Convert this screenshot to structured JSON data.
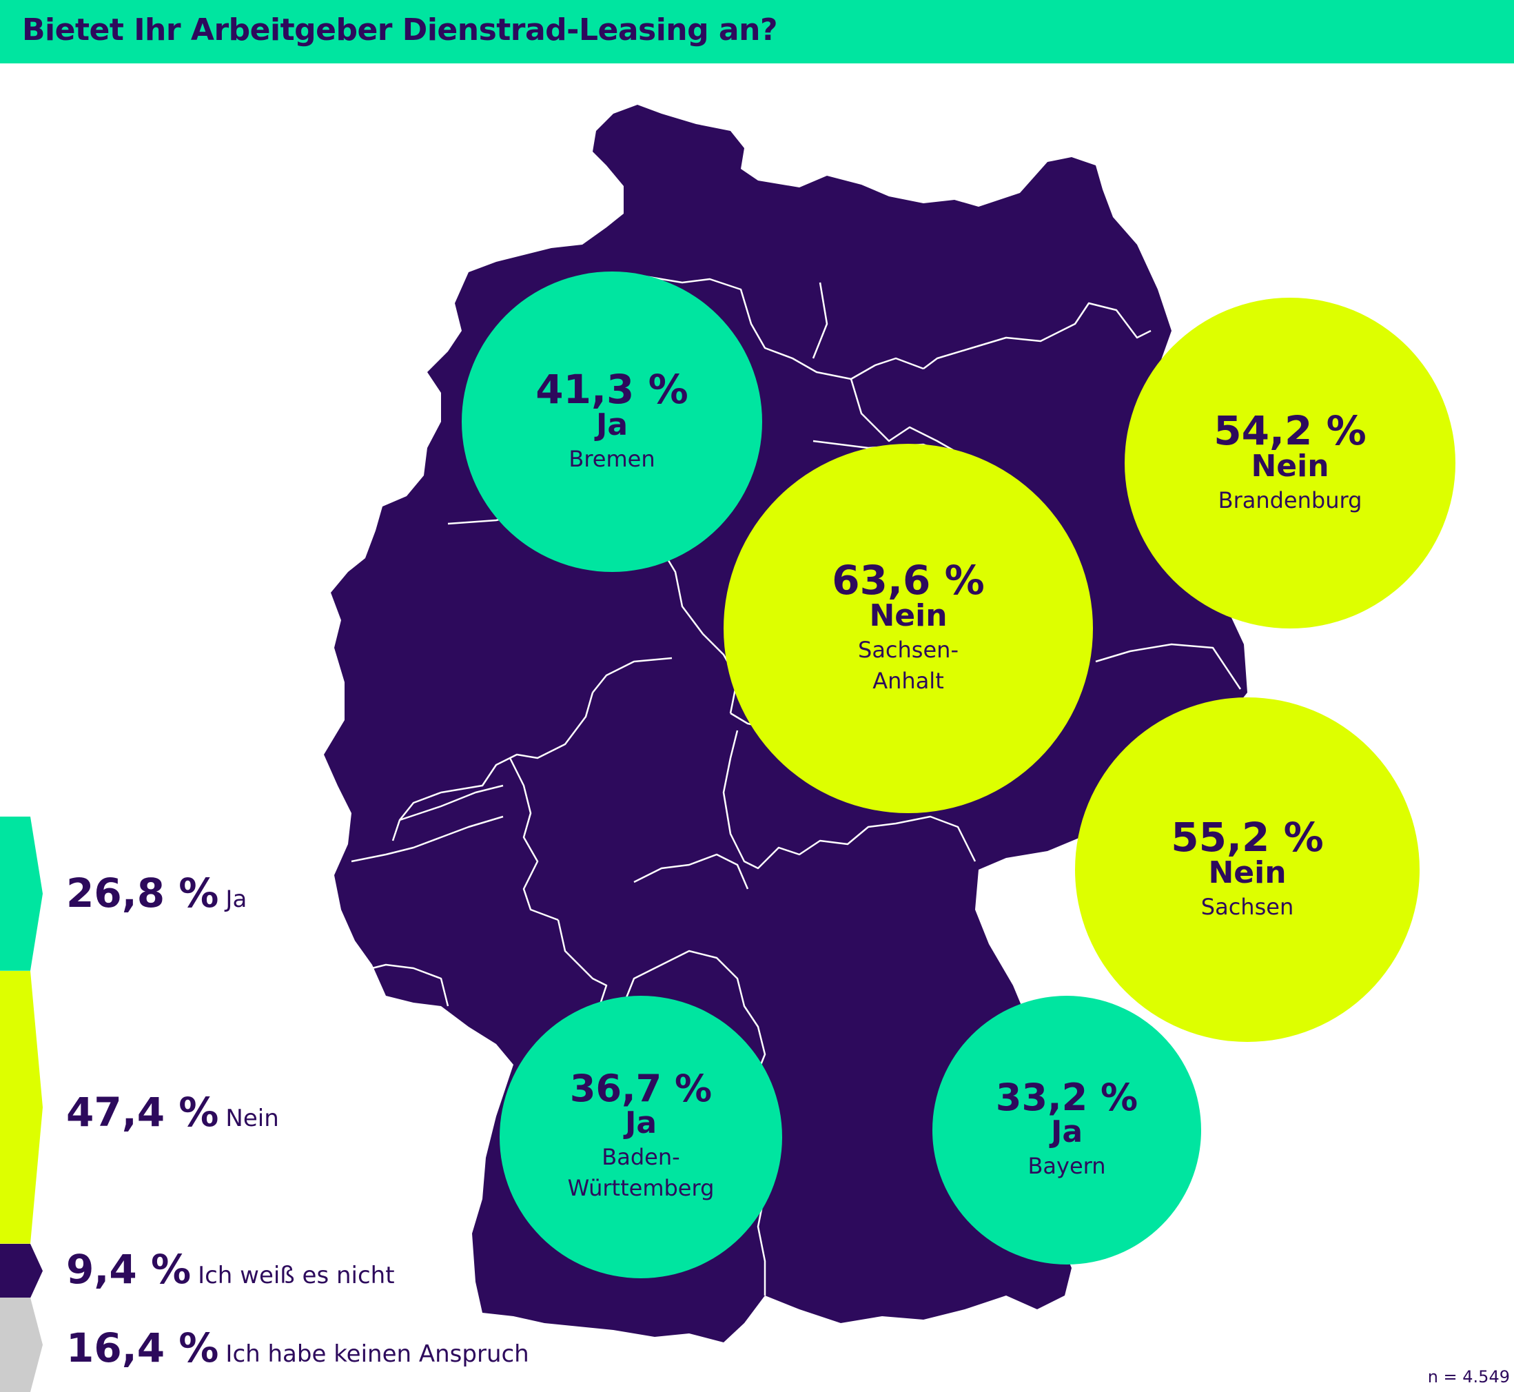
{
  "title": "Bietet Ihr Arbeitgeber Dienstrad-Leasing an?",
  "colors": {
    "ja": "#00e5a0",
    "nein": "#ddff00",
    "weiss_nicht": "#2d0a5c",
    "kein_anspruch": "#cccccc",
    "map": "#2d0a5c"
  },
  "regions": [
    {
      "state": "Bremen",
      "value": "41,3 %",
      "answer": "Ja",
      "category": "ja"
    },
    {
      "state": "Brandenburg",
      "value": "54,2 %",
      "answer": "Nein",
      "category": "nein"
    },
    {
      "state": "Sachsen-\nAnhalt",
      "value": "63,6 %",
      "answer": "Nein",
      "category": "nein"
    },
    {
      "state": "Sachsen",
      "value": "55,2 %",
      "answer": "Nein",
      "category": "nein"
    },
    {
      "state": "Baden-\nWürttemberg",
      "value": "36,7 %",
      "answer": "Ja",
      "category": "ja"
    },
    {
      "state": "Bayern",
      "value": "33,2 %",
      "answer": "Ja",
      "category": "ja"
    }
  ],
  "legend": [
    {
      "value": "26,8 %",
      "label": "Ja",
      "share": 26.8,
      "category": "ja"
    },
    {
      "value": "47,4 %",
      "label": "Nein",
      "share": 47.4,
      "category": "nein"
    },
    {
      "value": "9,4 %",
      "label": "Ich weiß es nicht",
      "share": 9.4,
      "category": "weiss_nicht"
    },
    {
      "value": "16,4 %",
      "label": "Ich habe keinen Anspruch",
      "share": 16.4,
      "category": "kein_anspruch"
    }
  ],
  "sample": "n = 4.549"
}
